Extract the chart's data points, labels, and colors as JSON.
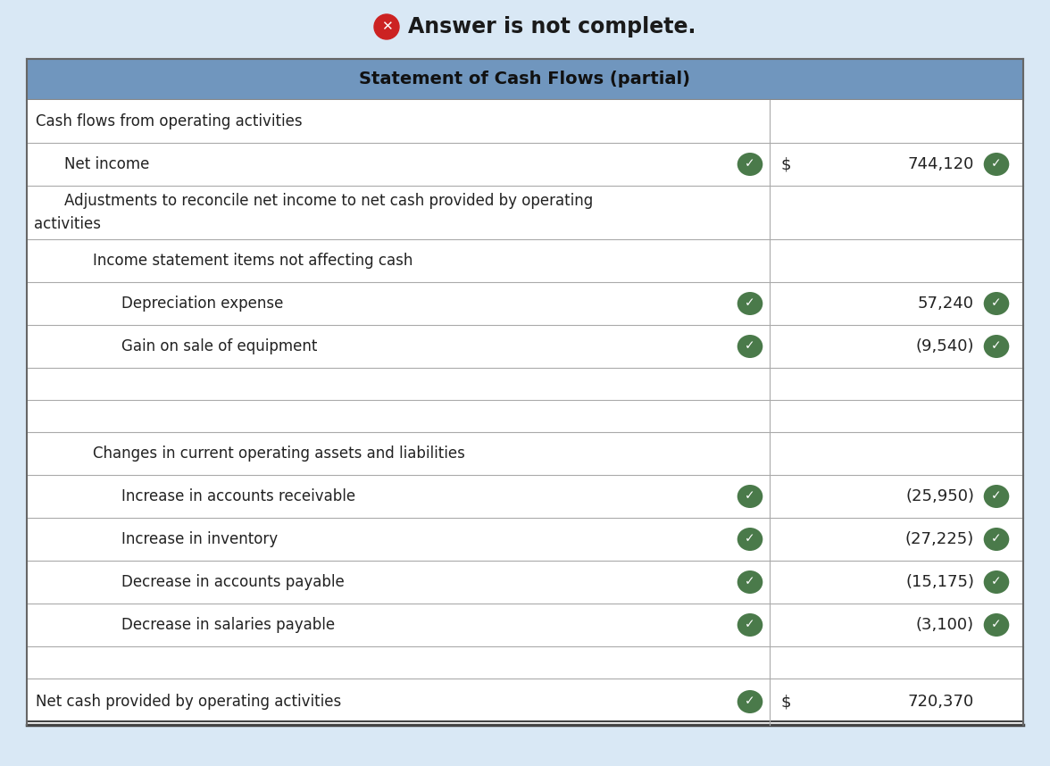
{
  "title": "Statement of Cash Flows (partial)",
  "header_bg": "#7096be",
  "top_banner_bg": "#d9e8f5",
  "top_banner_text": "Answer is not complete.",
  "border_color": "#aaaaaa",
  "rows": [
    {
      "indent": 0,
      "label": "Cash flows from operating activities",
      "col1": "",
      "col2": "",
      "check1": false,
      "check2": false,
      "rh": 48
    },
    {
      "indent": 1,
      "label": "Net income",
      "col1": "$",
      "col2": "744,120",
      "check1": true,
      "check2": true,
      "rh": 48
    },
    {
      "indent": 1,
      "label": "Adjustments to reconcile net income to net cash provided by operating\nactivities",
      "col1": "",
      "col2": "",
      "check1": false,
      "check2": false,
      "rh": 60
    },
    {
      "indent": 2,
      "label": "Income statement items not affecting cash",
      "col1": "",
      "col2": "",
      "check1": false,
      "check2": false,
      "rh": 48
    },
    {
      "indent": 3,
      "label": "Depreciation expense",
      "col1": "",
      "col2": "57,240",
      "check1": true,
      "check2": true,
      "rh": 48
    },
    {
      "indent": 3,
      "label": "Gain on sale of equipment",
      "col1": "",
      "col2": "(9,540)",
      "check1": true,
      "check2": true,
      "rh": 48
    },
    {
      "indent": 0,
      "label": "",
      "col1": "",
      "col2": "",
      "check1": false,
      "check2": false,
      "rh": 36
    },
    {
      "indent": 0,
      "label": "",
      "col1": "",
      "col2": "",
      "check1": false,
      "check2": false,
      "rh": 36
    },
    {
      "indent": 2,
      "label": "Changes in current operating assets and liabilities",
      "col1": "",
      "col2": "",
      "check1": false,
      "check2": false,
      "rh": 48
    },
    {
      "indent": 3,
      "label": "Increase in accounts receivable",
      "col1": "",
      "col2": "(25,950)",
      "check1": true,
      "check2": true,
      "rh": 48
    },
    {
      "indent": 3,
      "label": "Increase in inventory",
      "col1": "",
      "col2": "(27,225)",
      "check1": true,
      "check2": true,
      "rh": 48
    },
    {
      "indent": 3,
      "label": "Decrease in accounts payable",
      "col1": "",
      "col2": "(15,175)",
      "check1": true,
      "check2": true,
      "rh": 48
    },
    {
      "indent": 3,
      "label": "Decrease in salaries payable",
      "col1": "",
      "col2": "(3,100)",
      "check1": true,
      "check2": true,
      "rh": 48
    },
    {
      "indent": 0,
      "label": "",
      "col1": "",
      "col2": "",
      "check1": false,
      "check2": false,
      "rh": 36
    },
    {
      "indent": 0,
      "label": "Net cash provided by operating activities",
      "col1": "$",
      "col2": "720,370",
      "check1": true,
      "check2": false,
      "rh": 52
    }
  ]
}
